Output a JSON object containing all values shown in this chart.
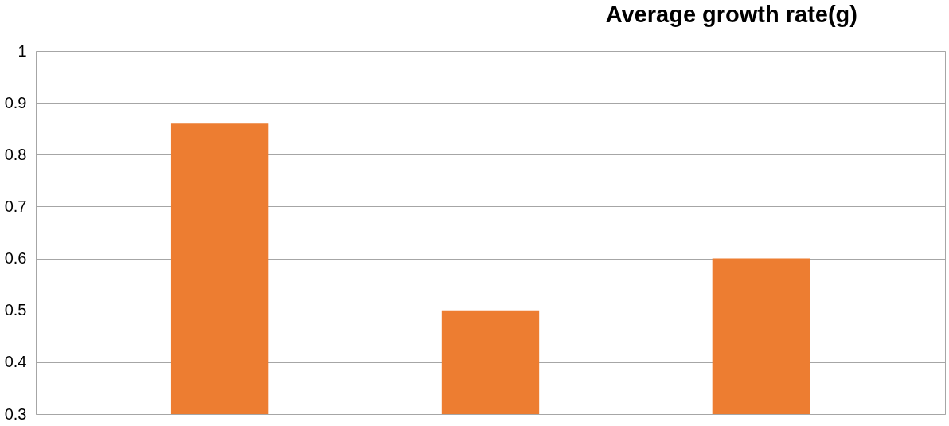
{
  "chart_data": {
    "type": "bar",
    "title": "Average growth rate(g)",
    "categories": [
      null,
      null,
      null
    ],
    "values": [
      0.86,
      0.5,
      0.6
    ],
    "color": "#ed7d31",
    "ylim": [
      0.3,
      1
    ],
    "yticks": [
      0.3,
      0.4,
      0.5,
      0.6,
      0.7,
      0.8,
      0.9,
      1
    ],
    "grid": "y",
    "tick_labels": "y"
  }
}
